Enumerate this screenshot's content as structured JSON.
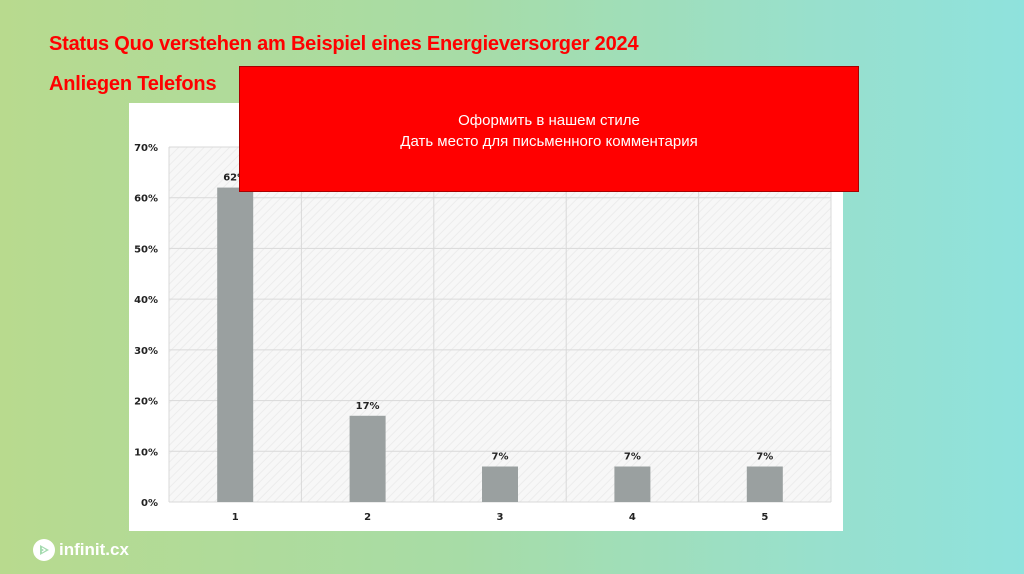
{
  "title_line1": "Status Quo verstehen am Beispiel eines Energieversorger 2024",
  "title_line2": "Anliegen Telefons",
  "overlay": {
    "line1": "Оформить в нашем стиле",
    "line2": "Дать место для письменного комментария"
  },
  "logo_text": "infinit.cx",
  "colors": {
    "title": "#ff0000",
    "overlay_bg": "#ff0000",
    "bar": "#9aa0a0",
    "grid": "#d9d9d9"
  },
  "chart_data": {
    "type": "bar",
    "title": "",
    "xlabel": "",
    "ylabel": "",
    "categories": [
      "1",
      "2",
      "3",
      "4",
      "5"
    ],
    "values": [
      62,
      17,
      7,
      7,
      7
    ],
    "value_labels": [
      "62%",
      "17%",
      "7%",
      "7%",
      "7%"
    ],
    "ylim": [
      0,
      70
    ],
    "yticks": [
      0,
      10,
      20,
      30,
      40,
      50,
      60,
      70
    ],
    "ytick_labels": [
      "0%",
      "10%",
      "20%",
      "30%",
      "40%",
      "50%",
      "60%",
      "70%"
    ],
    "grid": true
  }
}
